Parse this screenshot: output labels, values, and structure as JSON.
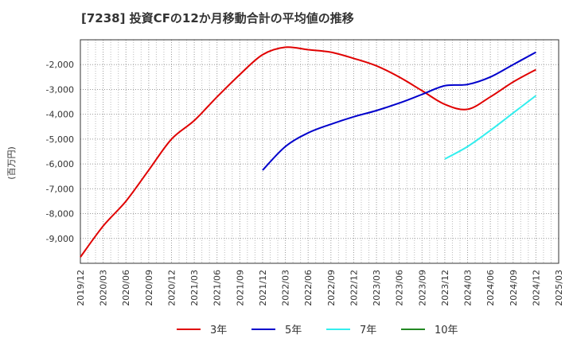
{
  "chart_data": {
    "type": "line",
    "title": "[7238]  投資CFの12か月移動合計の平均値の推移",
    "ylabel": "(百万円)",
    "xlabel": "",
    "x": [
      "2019/12",
      "2020/03",
      "2020/06",
      "2020/09",
      "2020/12",
      "2021/03",
      "2021/06",
      "2021/09",
      "2021/12",
      "2022/03",
      "2022/06",
      "2022/09",
      "2022/12",
      "2023/03",
      "2023/06",
      "2023/09",
      "2023/12",
      "2024/03",
      "2024/06",
      "2024/09",
      "2024/12",
      "2025/03"
    ],
    "ylim": [
      -10000,
      -1000
    ],
    "yticks": [
      -2000,
      -3000,
      -4000,
      -5000,
      -6000,
      -7000,
      -8000,
      -9000
    ],
    "ytick_labels": [
      "-2,000",
      "-3,000",
      "-4,000",
      "-5,000",
      "-6,000",
      "-7,000",
      "-8,000",
      "-9,000"
    ],
    "grid": true,
    "legend_position": "bottom",
    "series": [
      {
        "name": "3年",
        "color": "#e00000",
        "values": [
          -9750,
          -8500,
          -7500,
          -6250,
          -5000,
          -4250,
          -3300,
          -2400,
          -1600,
          -1300,
          -1400,
          -1500,
          -1750,
          -2050,
          -2500,
          -3050,
          -3600,
          -3800,
          -3300,
          -2700,
          -2200,
          null
        ]
      },
      {
        "name": "5年",
        "color": "#0000cc",
        "values": [
          null,
          null,
          null,
          null,
          null,
          null,
          null,
          null,
          -6250,
          -5300,
          -4750,
          -4400,
          -4100,
          -3850,
          -3550,
          -3200,
          -2850,
          -2800,
          -2500,
          -2000,
          -1500,
          null
        ]
      },
      {
        "name": "7年",
        "color": "#33eeee",
        "values": [
          null,
          null,
          null,
          null,
          null,
          null,
          null,
          null,
          null,
          null,
          null,
          null,
          null,
          null,
          null,
          null,
          -5800,
          -5300,
          -4650,
          -3950,
          -3250,
          null
        ]
      },
      {
        "name": "10年",
        "color": "#228822",
        "values": [
          null,
          null,
          null,
          null,
          null,
          null,
          null,
          null,
          null,
          null,
          null,
          null,
          null,
          null,
          null,
          null,
          null,
          null,
          null,
          null,
          null,
          null
        ]
      }
    ]
  }
}
